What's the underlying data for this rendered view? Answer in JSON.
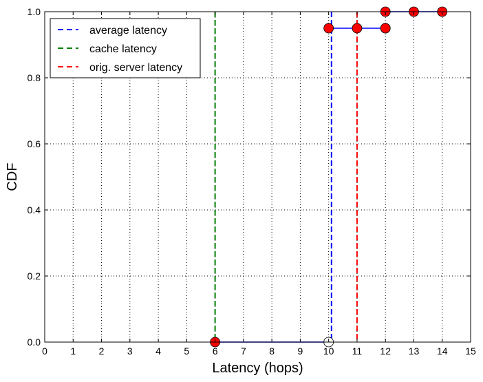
{
  "chart_data": {
    "type": "line",
    "xlabel": "Latency (hops)",
    "ylabel": "CDF",
    "xlim": [
      0,
      15
    ],
    "ylim": [
      0,
      1
    ],
    "x_ticks": [
      0,
      1,
      2,
      3,
      4,
      5,
      6,
      7,
      8,
      9,
      10,
      11,
      12,
      13,
      14,
      15
    ],
    "x_tick_labels": [
      "0",
      "1",
      "2",
      "3",
      "4",
      "5",
      "6",
      "7",
      "8",
      "9",
      "10",
      "11",
      "12",
      "13",
      "14",
      "15"
    ],
    "y_ticks": [
      0,
      0.2,
      0.4,
      0.6,
      0.8,
      1.0
    ],
    "y_tick_labels": [
      "0.0",
      "0.2",
      "0.4",
      "0.6",
      "0.8",
      "1.0"
    ],
    "grid": true,
    "legend_position": "top-left",
    "cdf": {
      "color": "#0000ff",
      "marker_color": "#ff0000",
      "steps": [
        {
          "x": [
            6,
            10
          ],
          "y": 0.0
        },
        {
          "x": [
            10,
            12
          ],
          "y": 0.95
        },
        {
          "x": [
            12,
            14
          ],
          "y": 1.0
        }
      ],
      "filled_markers": [
        {
          "x": 6,
          "y": 0.0
        },
        {
          "x": 10,
          "y": 0.95
        },
        {
          "x": 11,
          "y": 0.95
        },
        {
          "x": 12,
          "y": 0.95
        },
        {
          "x": 12,
          "y": 1.0
        },
        {
          "x": 13,
          "y": 1.0
        },
        {
          "x": 14,
          "y": 1.0
        }
      ],
      "open_markers": [
        {
          "x": 10,
          "y": 0.0
        },
        {
          "x": 12,
          "y": 0.95
        }
      ]
    },
    "series": [
      {
        "name": "average latency",
        "x": 10.1,
        "color": "#0000ff",
        "style": "dashed"
      },
      {
        "name": "cache latency",
        "x": 6.0,
        "color": "#007f00",
        "style": "dashed"
      },
      {
        "name": "orig. server latency",
        "x": 11.0,
        "color": "#ff0000",
        "style": "dashed"
      }
    ]
  }
}
